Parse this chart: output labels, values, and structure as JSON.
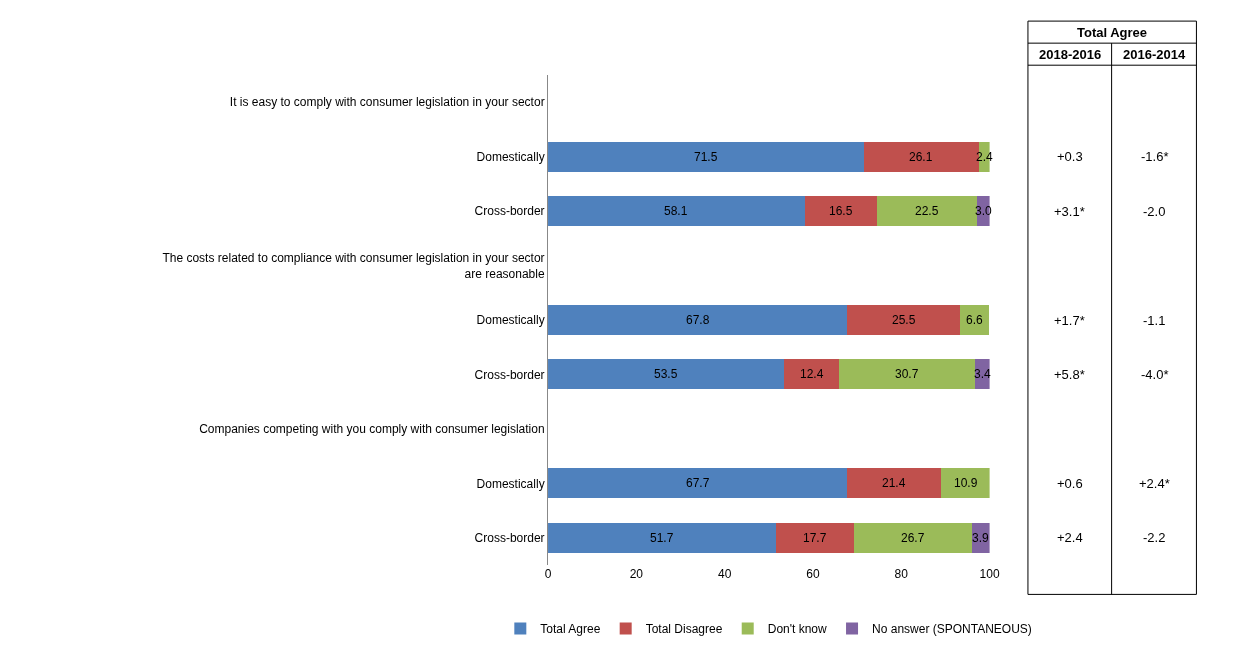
{
  "chart_data": {
    "type": "bar",
    "orientation": "horizontal",
    "stacked": true,
    "legend": "bottom",
    "categories": [
      "It is easy to comply with consumer legislation in your sector",
      "Domestically",
      "Cross-border",
      "The costs related to compliance with consumer legislation in your sector are reasonable",
      "Domestically",
      "Cross-border",
      "Companies competing with you comply with consumer legislation",
      "Domestically",
      "Cross-border"
    ],
    "series": [
      {
        "name": "Total Agree",
        "color": "#4f81bd",
        "values": [
          null,
          71.5,
          58.1,
          null,
          67.8,
          53.5,
          null,
          67.7,
          51.7
        ],
        "value_labels": [
          null,
          "71.5",
          "58.1",
          null,
          "67.8",
          "53.5",
          null,
          "67.7",
          "51.7"
        ]
      },
      {
        "name": "Total Disagree",
        "color": "#c0504d",
        "values": [
          null,
          26.1,
          16.5,
          null,
          25.5,
          12.4,
          null,
          21.4,
          17.7
        ],
        "value_labels": [
          null,
          "26.1",
          "16.5",
          null,
          "25.5",
          "12.4",
          null,
          "21.4",
          "17.7"
        ]
      },
      {
        "name": "Don't know",
        "color": "#9bbb59",
        "values": [
          null,
          2.4,
          22.5,
          null,
          6.6,
          30.7,
          null,
          10.9,
          26.7
        ],
        "value_labels": [
          null,
          "2.4",
          "22.5",
          null,
          "6.6",
          "30.7",
          null,
          "10.9",
          "26.7"
        ]
      },
      {
        "name": "No answer (SPONTANEOUS)",
        "color": "#8064a2",
        "values": [
          null,
          null,
          3.0,
          null,
          null,
          3.4,
          null,
          null,
          3.9
        ],
        "value_labels": [
          null,
          null,
          "3.0",
          null,
          null,
          "3.4",
          null,
          null,
          "3.9"
        ]
      }
    ],
    "xlim": [
      0,
      100
    ],
    "xticks": [
      0,
      20,
      40,
      60,
      80,
      100
    ],
    "annotations": [
      "Total Agree",
      "2018-2016",
      "2016-2014",
      "+0.3",
      "-1.6*",
      "+3.1*",
      "-2.0",
      "+1.7*",
      "-1.1",
      "+5.8*",
      "-4.0*",
      "+0.6",
      "+2.4*",
      "+2.4",
      "-2.2"
    ]
  }
}
